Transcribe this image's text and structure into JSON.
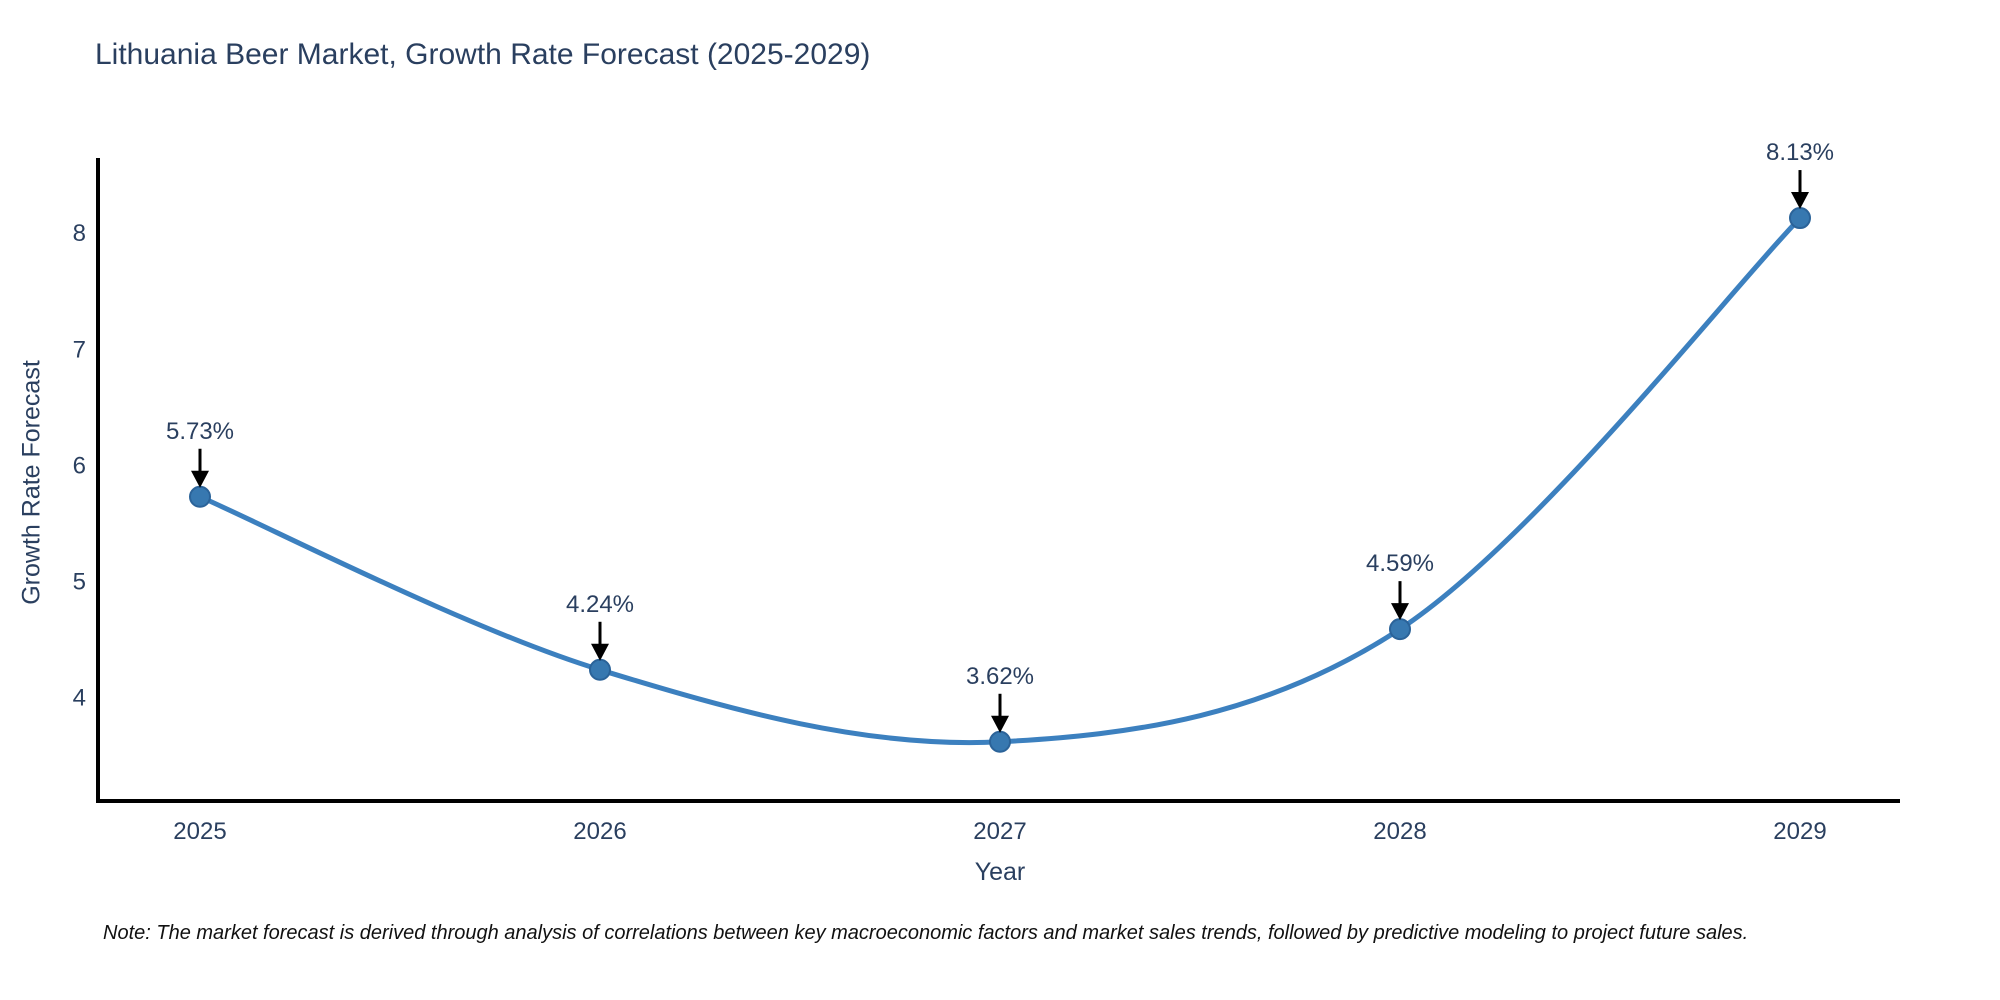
{
  "title": "Lithuania Beer Market, Growth Rate Forecast (2025-2029)",
  "note": "Note: The market forecast is derived through analysis of correlations between key macroeconomic factors and market sales trends, followed by predictive modeling to project future sales.",
  "colors": {
    "line": "#3c80bf",
    "marker_fill": "#3778b0",
    "marker_stroke": "#2b6399",
    "axis_line": "#000000",
    "tick_text": "#2a3f5f",
    "annotation_text": "#2a3f5f",
    "annotation_arrow": "#000000",
    "title_text": "#2a3f5f",
    "note_text": "#111111",
    "background": "#ffffff"
  },
  "chart_data": {
    "type": "line",
    "title": "Lithuania Beer Market, Growth Rate Forecast (2025-2029)",
    "xlabel": "Year",
    "ylabel": "Growth Rate Forecast",
    "x": [
      2025,
      2026,
      2027,
      2028,
      2029
    ],
    "values": [
      5.73,
      4.24,
      3.62,
      4.59,
      8.13
    ],
    "point_labels": [
      "5.73%",
      "4.24%",
      "3.62%",
      "4.59%",
      "8.13%"
    ],
    "x_ticks": [
      "2025",
      "2026",
      "2027",
      "2028",
      "2029"
    ],
    "y_ticks": [
      4,
      5,
      6,
      7,
      8
    ],
    "xlim": [
      2024.745,
      2029.25
    ],
    "ylim": [
      3.11,
      8.63
    ],
    "grid": false,
    "legend": "none",
    "line_shape": "spline",
    "annotations": "value labels with downward arrows above each point"
  }
}
